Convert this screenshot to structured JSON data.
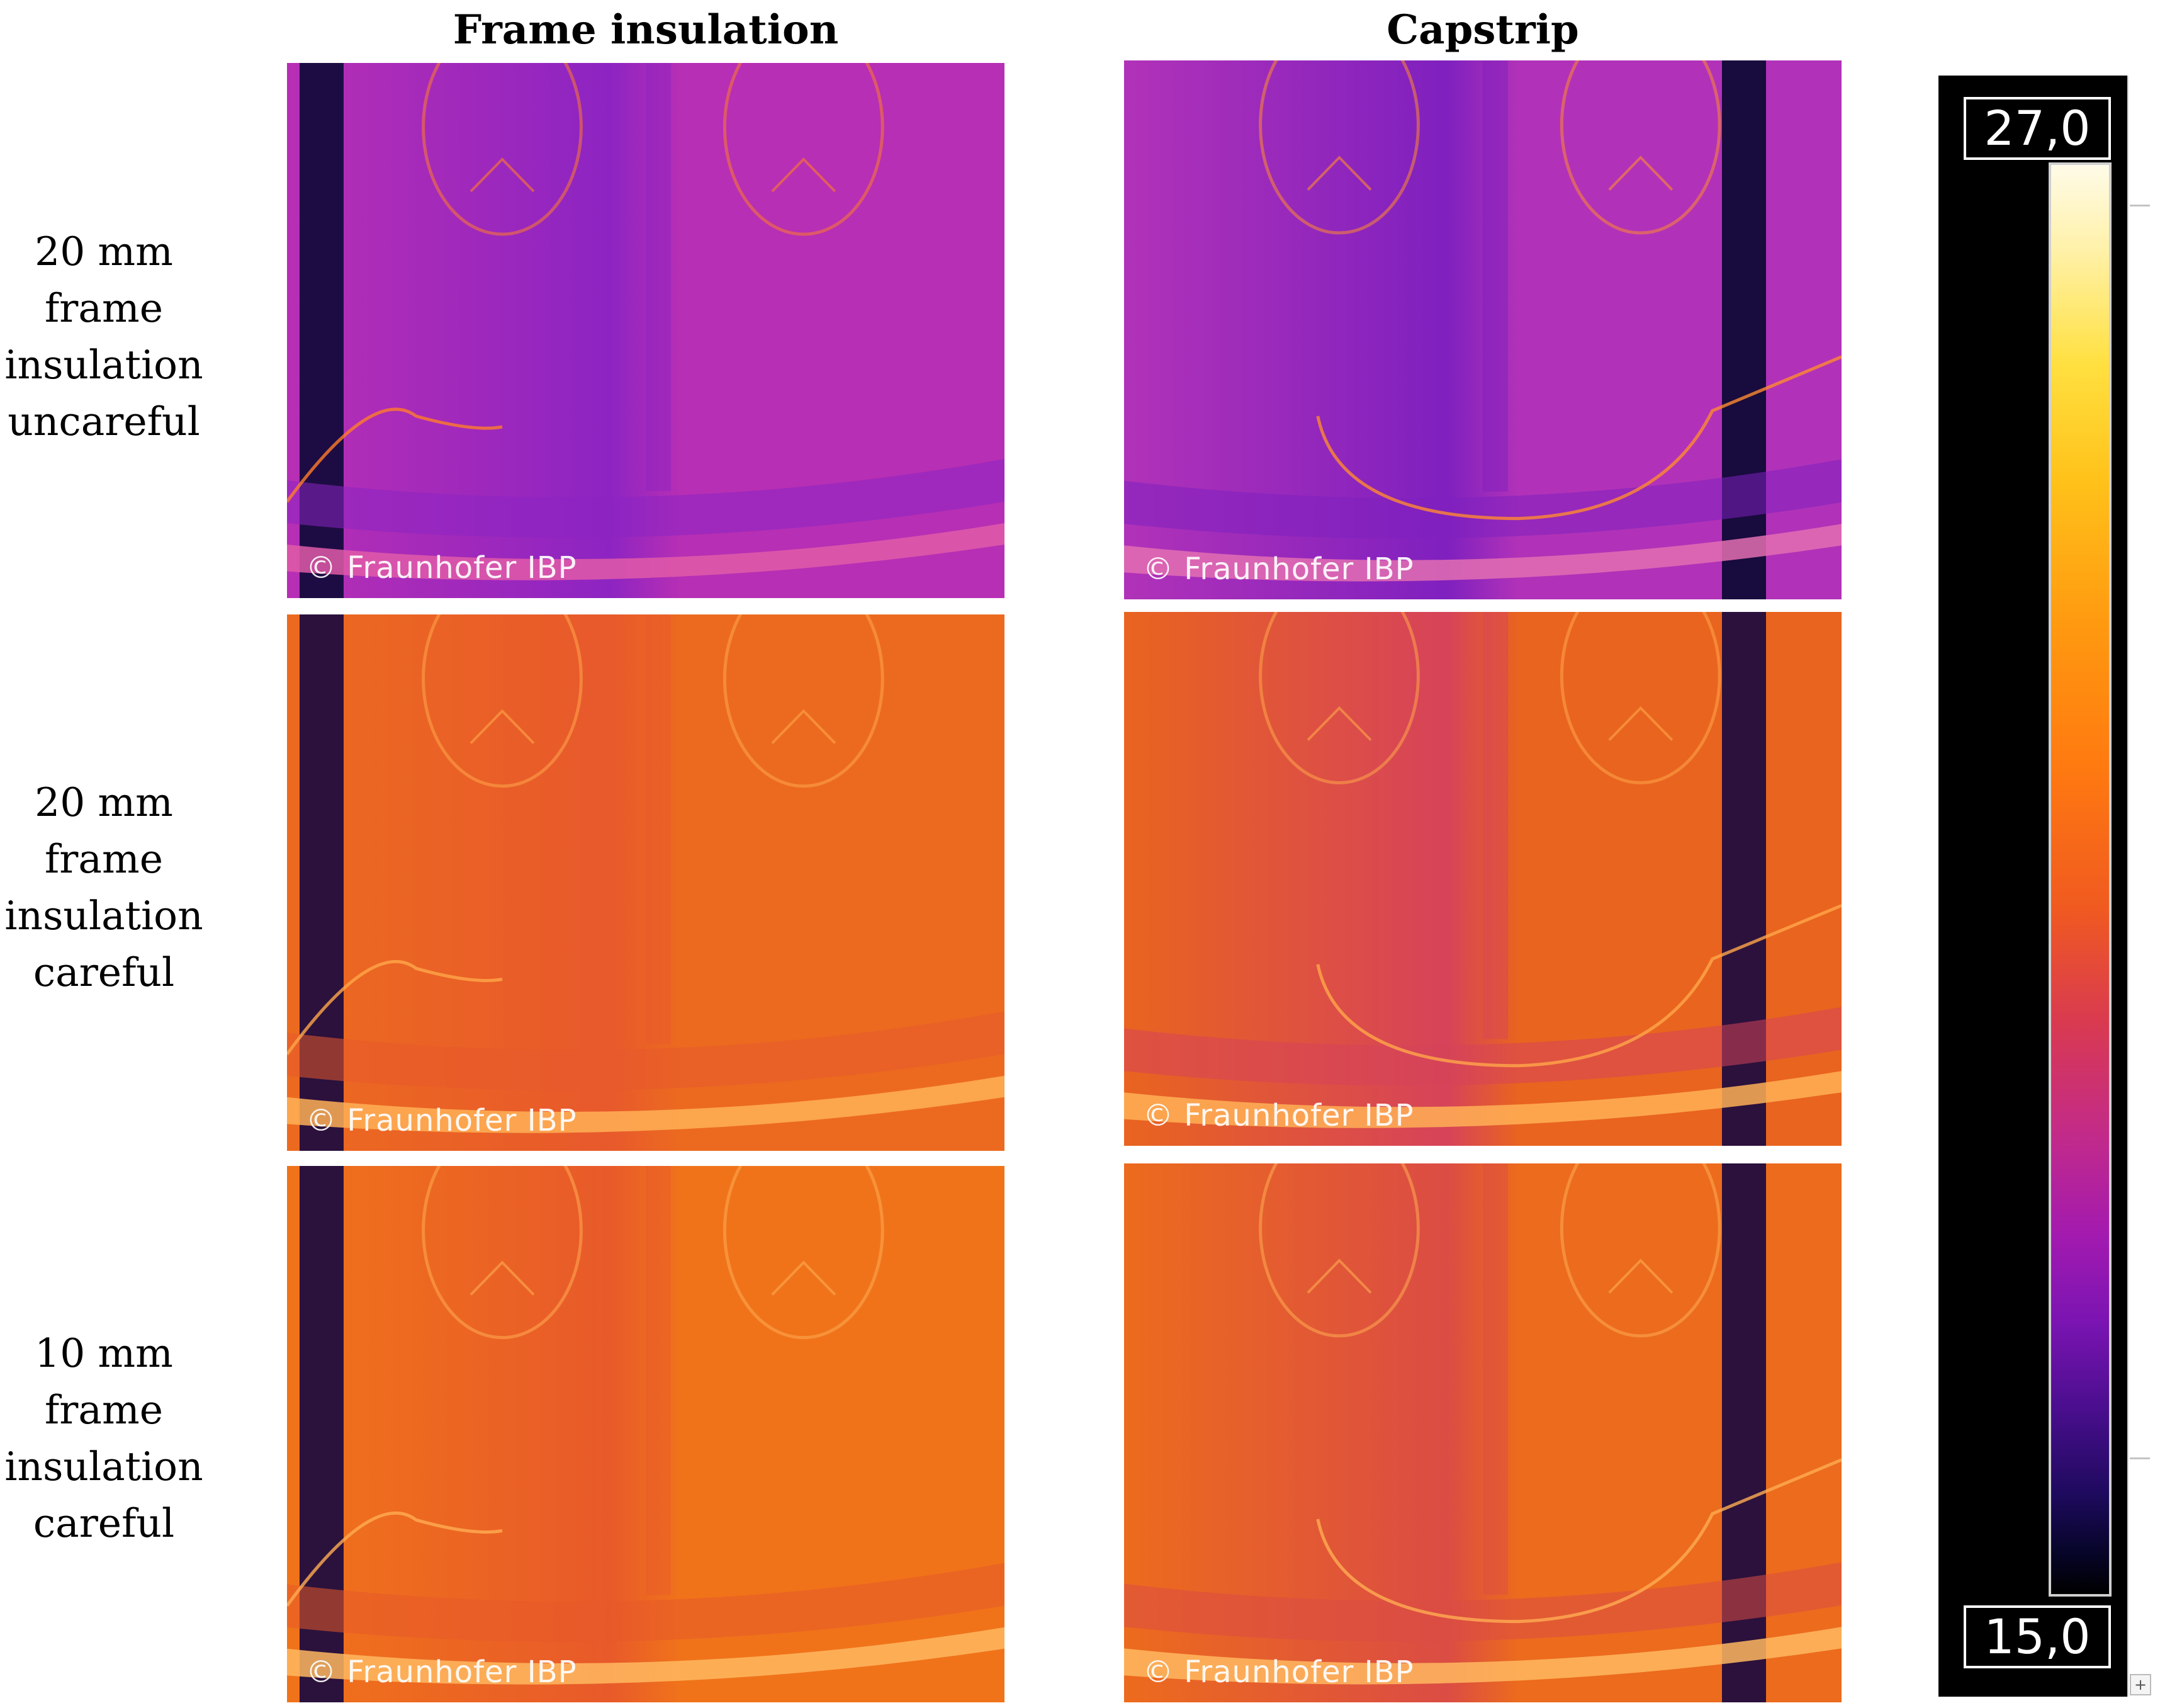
{
  "columns": [
    "Frame insulation",
    "Capstrip"
  ],
  "rows": [
    {
      "lines": [
        "20 mm",
        "frame",
        "insulation",
        "uncareful"
      ]
    },
    {
      "lines": [
        "20 mm",
        "frame",
        "insulation",
        "careful"
      ]
    },
    {
      "lines": [
        "10 mm",
        "frame",
        "insulation",
        "careful"
      ]
    }
  ],
  "watermark": "© Fraunhofer IBP",
  "scale": {
    "max": "27,0",
    "min": "15,0"
  },
  "panels": [
    {
      "id": "frame-uncareful",
      "base": "#b72fb4",
      "mid": "#8d24c2",
      "edge": "#100a3a",
      "wire": "#ff7c2a",
      "strip": "#e05aa8"
    },
    {
      "id": "capstrip-uncareful",
      "base": "#b132b8",
      "mid": "#7f20bf",
      "edge": "#0b0832",
      "wire": "#ff8a30",
      "strip": "#e36fb2"
    },
    {
      "id": "frame-careful-20",
      "base": "#ec6a1f",
      "mid": "#e8592c",
      "edge": "#1a0a3f",
      "wire": "#ffa64a",
      "strip": "#ffb056"
    },
    {
      "id": "capstrip-careful-20",
      "base": "#e9641f",
      "mid": "#d6435a",
      "edge": "#1a0a3f",
      "wire": "#ffa64a",
      "strip": "#ffb056"
    },
    {
      "id": "frame-careful-10",
      "base": "#f0731a",
      "mid": "#e85a2a",
      "edge": "#1a0a3f",
      "wire": "#ffac52",
      "strip": "#ffb860"
    },
    {
      "id": "capstrip-careful-10",
      "base": "#ec6b1d",
      "mid": "#db4c44",
      "edge": "#1a0a3f",
      "wire": "#ffac52",
      "strip": "#ffb860"
    }
  ]
}
